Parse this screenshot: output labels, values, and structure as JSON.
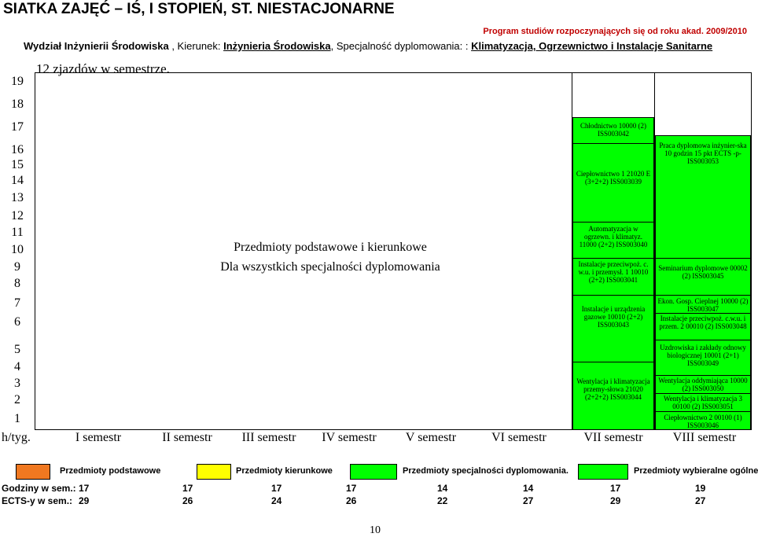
{
  "title": "SIATKA ZAJĘĆ – IŚ, I STOPIEŃ, ST. NIESTACJONARNE",
  "program_note": "Program studiów rozpoczynających się od roku akad. 2009/2010",
  "department": {
    "part1": "Wydział Inżynierii Środowiska",
    "part2": " , Kierunek: ",
    "kierunek": "Inżynieria Środowiska",
    "part3": ", Specjalność dyplomowania: : ",
    "specjalnosc": "Klimatyzacja, Ogrzewnictwo i Instalacje Sanitarne"
  },
  "zjazdy": "12 zjazdów w semestrze.",
  "rows": [
    "19",
    "18",
    "17",
    "16",
    "15",
    "14",
    "13",
    "12",
    "11",
    "10",
    "9",
    "8",
    "7",
    "6",
    "5",
    "4",
    "3",
    "2",
    "1"
  ],
  "hours_label": "h/tyg.",
  "semesters": [
    "I semestr",
    "II semestr",
    "III semestr",
    "IV semestr",
    "V semestr",
    "VI semestr",
    "VII semestr",
    "VIII semestr"
  ],
  "center_text": {
    "line1": "Przedmioty podstawowe i kierunkowe",
    "line2": "Dla wszystkich specjalności dyplomowania"
  },
  "sem7_cells": [
    "Chłodnictwo 10000 (2) ISS003042",
    "Ciepłownictwo 1 21020 E (3+2+2) ISS003039",
    "Automatyzacja w ogrzewn. i klimatyz. 11000 (2+2) ISS003040",
    "Instalacje przeciwpoż. c. w.u. i przemysł. 1 10010 (2+2) ISS003041",
    "Instalacje i urządzenia gazowe 10010 (2+2) ISS003043",
    "Wentylacja i klimatyzacja przemy-słowa 21020 (2+2+2) ISS003044"
  ],
  "sem8_cells": [
    "Praca dyplomowa inżynier-ska 10 godzin 15 pkt ECTS -p- ISS003053",
    "Seminarium dyplomowe 00002 (2) ISS003045",
    "Ekon. Gosp. Cieplnej 10000 (2) ISS003047",
    "Instalacje przeciwpoż. c.w.u. i przem. 2 00010 (2) ISS003048",
    "Uzdrowiska i zakłady odnowy biologicznej 10001 (2+1) ISS003049",
    "Wentylacja oddymiająca 10000 (2) ISS003050",
    "Wentylacja i klimatyzacja 3 00100 (2) ISS003051",
    "Ciepłownictwo 2 00100 (1) ISS003046"
  ],
  "legend": [
    {
      "label": "Przedmioty podstawowe",
      "color": "#f07820"
    },
    {
      "label": "Przedmioty kierunkowe",
      "color": "#ffff00"
    },
    {
      "label": "Przedmioty specjalności dyplomowania.",
      "color": "#00ff00"
    },
    {
      "label": "Przedmioty wybieralne ogólne",
      "color": "#00ff00"
    }
  ],
  "stats": {
    "hours_label": "Godziny w sem.:",
    "hours": [
      "17",
      "17",
      "17",
      "17",
      "14",
      "14",
      "17",
      "19"
    ],
    "ects_label": "ECTS-y w sem.:",
    "ects": [
      "29",
      "26",
      "24",
      "26",
      "22",
      "27",
      "29",
      "27"
    ]
  },
  "page_number": "10",
  "colors": {
    "specialization": "#00ff00",
    "basic": "#f07820",
    "directional": "#ffff00",
    "program_note": "#c00000"
  }
}
